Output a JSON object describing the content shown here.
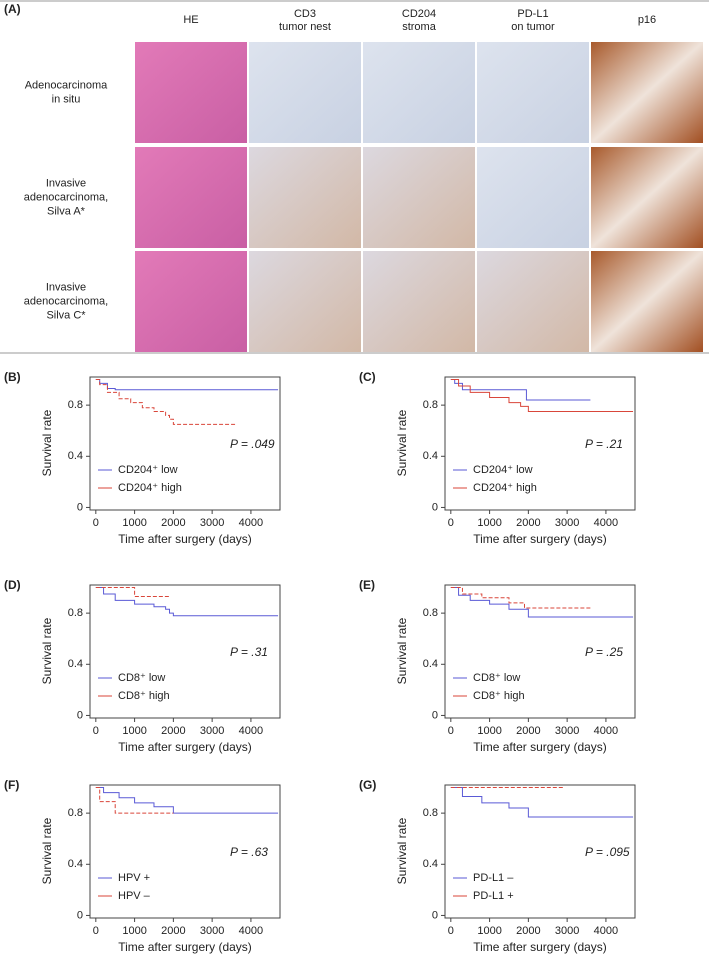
{
  "panel_a": {
    "label": "(A)",
    "columns": [
      [
        "HE"
      ],
      [
        "CD3",
        "tumor nest"
      ],
      [
        "CD204",
        "stroma"
      ],
      [
        "PD-L1",
        "on tumor"
      ],
      [
        "p16"
      ]
    ],
    "rows": [
      [
        "Adenocarcinoma",
        "in situ"
      ],
      [
        "Invasive",
        "adenocarcinoma,",
        "Silva A*"
      ],
      [
        "Invasive",
        "adenocarcinoma,",
        "Silva C*"
      ]
    ]
  },
  "chart_data": [
    {
      "type": "step",
      "label": "(B)",
      "ylabel": "Survival rate",
      "xlabel": "Time after surgery (days)",
      "annotation": "P = .049",
      "xlim": [
        -150,
        4750
      ],
      "ylim": [
        -0.02,
        1.02
      ],
      "xticks": [
        0,
        1000,
        2000,
        3000,
        4000
      ],
      "yticks": [
        0,
        0.4,
        0.8
      ],
      "legend": "lower left",
      "series": [
        {
          "name": "CD204⁺ low",
          "color": "#5a5ad6",
          "dashed": false,
          "x": [
            0,
            100,
            300,
            500,
            4700
          ],
          "values": [
            1,
            0.97,
            0.93,
            0.92,
            0.92
          ]
        },
        {
          "name": "CD204⁺ high",
          "color": "#d9463a",
          "dashed": true,
          "x": [
            0,
            100,
            300,
            600,
            900,
            1200,
            1500,
            1800,
            1900,
            2000,
            3600
          ],
          "values": [
            1,
            0.96,
            0.9,
            0.85,
            0.82,
            0.78,
            0.75,
            0.72,
            0.69,
            0.65,
            0.65
          ]
        }
      ]
    },
    {
      "type": "step",
      "label": "(C)",
      "ylabel": "Survival rate",
      "xlabel": "Time after surgery (days)",
      "annotation": "P = .21",
      "xlim": [
        -150,
        4750
      ],
      "ylim": [
        -0.02,
        1.02
      ],
      "xticks": [
        0,
        1000,
        2000,
        3000,
        4000
      ],
      "yticks": [
        0,
        0.4,
        0.8
      ],
      "legend": "lower left",
      "series": [
        {
          "name": "CD204⁺ low",
          "color": "#5a5ad6",
          "dashed": false,
          "x": [
            0,
            100,
            300,
            1800,
            1950,
            3600
          ],
          "values": [
            1,
            0.97,
            0.92,
            0.92,
            0.84,
            0.84
          ]
        },
        {
          "name": "CD204⁺ high",
          "color": "#d9463a",
          "dashed": false,
          "x": [
            0,
            200,
            500,
            1000,
            1500,
            1800,
            2000,
            4700
          ],
          "values": [
            1,
            0.95,
            0.9,
            0.86,
            0.82,
            0.79,
            0.75,
            0.75
          ]
        }
      ]
    },
    {
      "type": "step",
      "label": "(D)",
      "ylabel": "Survival rate",
      "xlabel": "Time after surgery (days)",
      "annotation": "P = .31",
      "xlim": [
        -150,
        4750
      ],
      "ylim": [
        -0.02,
        1.02
      ],
      "xticks": [
        0,
        1000,
        2000,
        3000,
        4000
      ],
      "yticks": [
        0,
        0.4,
        0.8
      ],
      "legend": "lower left",
      "series": [
        {
          "name": "CD8⁺ low",
          "color": "#5a5ad6",
          "dashed": false,
          "x": [
            0,
            200,
            500,
            1000,
            1500,
            1800,
            1900,
            2000,
            4700
          ],
          "values": [
            1,
            0.95,
            0.9,
            0.87,
            0.85,
            0.83,
            0.8,
            0.78,
            0.78
          ]
        },
        {
          "name": "CD8⁺ high",
          "color": "#d9463a",
          "dashed": true,
          "x": [
            0,
            1000,
            1900
          ],
          "values": [
            1,
            0.93,
            0.93
          ]
        }
      ]
    },
    {
      "type": "step",
      "label": "(E)",
      "ylabel": "Survival rate",
      "xlabel": "Time after surgery (days)",
      "annotation": "P = .25",
      "xlim": [
        -150,
        4750
      ],
      "ylim": [
        -0.02,
        1.02
      ],
      "xticks": [
        0,
        1000,
        2000,
        3000,
        4000
      ],
      "yticks": [
        0,
        0.4,
        0.8
      ],
      "legend": "lower left",
      "series": [
        {
          "name": "CD8⁺ low",
          "color": "#5a5ad6",
          "dashed": false,
          "x": [
            0,
            200,
            500,
            1000,
            1500,
            2000,
            4700
          ],
          "values": [
            1,
            0.94,
            0.9,
            0.87,
            0.83,
            0.77,
            0.77
          ]
        },
        {
          "name": "CD8⁺ high",
          "color": "#d9463a",
          "dashed": true,
          "x": [
            0,
            300,
            800,
            1500,
            1900,
            3600
          ],
          "values": [
            1,
            0.95,
            0.92,
            0.88,
            0.84,
            0.84
          ]
        }
      ]
    },
    {
      "type": "step",
      "label": "(F)",
      "ylabel": "Survival rate",
      "xlabel": "Time after surgery (days)",
      "annotation": "P = .63",
      "xlim": [
        -150,
        4750
      ],
      "ylim": [
        -0.02,
        1.02
      ],
      "xticks": [
        0,
        1000,
        2000,
        3000,
        4000
      ],
      "yticks": [
        0,
        0.4,
        0.8
      ],
      "legend": "lower left",
      "series": [
        {
          "name": "HPV +",
          "color": "#5a5ad6",
          "dashed": false,
          "x": [
            0,
            200,
            600,
            1000,
            1500,
            2000,
            4700
          ],
          "values": [
            1,
            0.96,
            0.92,
            0.88,
            0.85,
            0.8,
            0.8
          ]
        },
        {
          "name": "HPV –",
          "color": "#d9463a",
          "dashed": true,
          "x": [
            0,
            100,
            500,
            2000
          ],
          "values": [
            1,
            0.89,
            0.8,
            0.8
          ]
        }
      ]
    },
    {
      "type": "step",
      "label": "(G)",
      "ylabel": "Survival rate",
      "xlabel": "Time after surgery (days)",
      "annotation": "P = .095",
      "xlim": [
        -150,
        4750
      ],
      "ylim": [
        -0.02,
        1.02
      ],
      "xticks": [
        0,
        1000,
        2000,
        3000,
        4000
      ],
      "yticks": [
        0,
        0.4,
        0.8
      ],
      "legend": "lower left",
      "series": [
        {
          "name": "PD-L1 –",
          "color": "#5a5ad6",
          "dashed": false,
          "x": [
            0,
            300,
            800,
            1500,
            2000,
            4700
          ],
          "values": [
            1,
            0.93,
            0.88,
            0.84,
            0.77,
            0.77
          ]
        },
        {
          "name": "PD-L1 +",
          "color": "#d9463a",
          "dashed": true,
          "x": [
            0,
            2900
          ],
          "values": [
            1,
            1
          ]
        }
      ]
    }
  ]
}
